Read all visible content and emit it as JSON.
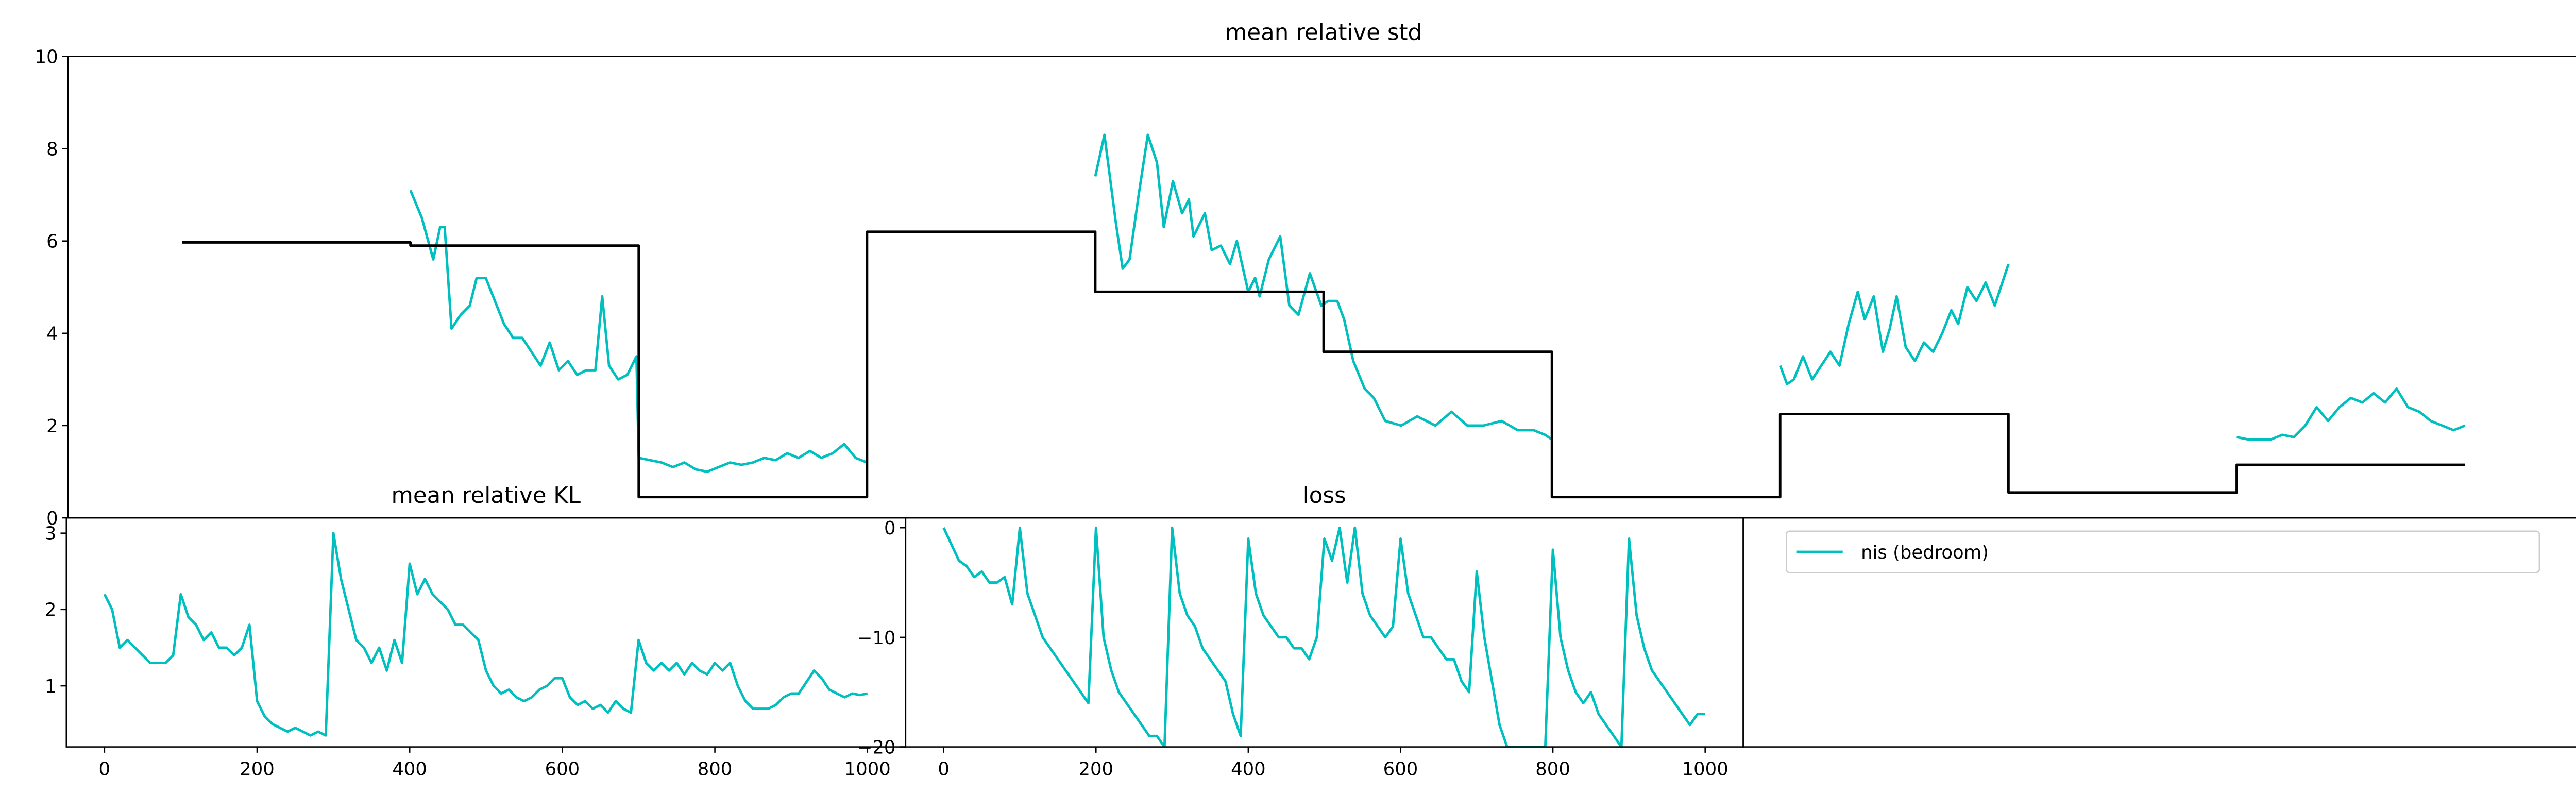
{
  "chart_data": [
    {
      "type": "line",
      "title": "mean relative std",
      "xlim": [
        50,
        1150
      ],
      "ylim": [
        0,
        10
      ],
      "yticks": [
        0,
        2,
        4,
        6,
        8,
        10
      ],
      "series": [
        {
          "color": "#00bfbf",
          "x": [
            200,
            205,
            210,
            213,
            215,
            218,
            222,
            226,
            229,
            233,
            237,
            241,
            245,
            249,
            253,
            257,
            261,
            265,
            269,
            273,
            277,
            281,
            284,
            287,
            291,
            295,
            299,
            300,
            305,
            310,
            315,
            320,
            325,
            330,
            335,
            340,
            345,
            350,
            355,
            360,
            365,
            370,
            375,
            380,
            385,
            390,
            395,
            400,
            450,
            500,
            504,
            509,
            512,
            515,
            519,
            523,
            527,
            530,
            534,
            538,
            541,
            543,
            548,
            551,
            555,
            559,
            562,
            567,
            570,
            572,
            576,
            581,
            585,
            589,
            594,
            599,
            602,
            606,
            609,
            613,
            618,
            622,
            627,
            634,
            641,
            649,
            656,
            663,
            670,
            678,
            685,
            692,
            697,
            700,
            750,
            800,
            803,
            806,
            810,
            814,
            818,
            822,
            826,
            830,
            834,
            837,
            841,
            845,
            848,
            851,
            855,
            859,
            863,
            867,
            871,
            875,
            878,
            882,
            886,
            890,
            894,
            900,
            950,
            1000,
            1005,
            1010,
            1015,
            1020,
            1025,
            1030,
            1035,
            1040,
            1045,
            1050,
            1055,
            1060,
            1065,
            1070,
            1075,
            1080,
            1085,
            1090,
            1095,
            1100
          ],
          "values": [
            7.1,
            6.5,
            5.6,
            6.3,
            6.3,
            4.1,
            4.4,
            4.6,
            5.2,
            5.2,
            4.7,
            4.2,
            3.9,
            3.9,
            3.6,
            3.3,
            3.8,
            3.2,
            3.4,
            3.1,
            3.2,
            3.2,
            4.8,
            3.3,
            3.0,
            3.1,
            3.5,
            1.3,
            1.25,
            1.2,
            1.1,
            1.2,
            1.05,
            1.0,
            1.1,
            1.2,
            1.15,
            1.2,
            1.3,
            1.25,
            1.4,
            1.3,
            1.45,
            1.3,
            1.4,
            1.6,
            1.3,
            1.2,
            null,
            7.4,
            8.3,
            6.4,
            5.4,
            5.6,
            7.0,
            8.3,
            7.7,
            6.3,
            7.3,
            6.6,
            6.9,
            6.1,
            6.6,
            5.8,
            5.9,
            5.5,
            6.0,
            4.9,
            5.2,
            4.8,
            5.6,
            6.1,
            4.6,
            4.4,
            5.3,
            4.6,
            4.7,
            4.7,
            4.3,
            3.4,
            2.8,
            2.6,
            2.1,
            2.0,
            2.2,
            2.0,
            2.3,
            2.0,
            2.0,
            2.1,
            1.9,
            1.9,
            1.8,
            1.7,
            null,
            3.3,
            2.9,
            3.0,
            3.5,
            3.0,
            3.3,
            3.6,
            3.3,
            4.2,
            4.9,
            4.3,
            4.8,
            3.6,
            4.1,
            4.8,
            3.7,
            3.4,
            3.8,
            3.6,
            4.0,
            4.5,
            4.2,
            5.0,
            4.7,
            5.1,
            4.6,
            5.5,
            null,
            1.75,
            1.7,
            1.7,
            1.7,
            1.8,
            1.75,
            2.0,
            2.4,
            2.1,
            2.4,
            2.6,
            2.5,
            2.7,
            2.5,
            2.8,
            2.4,
            2.3,
            2.1,
            2.0,
            1.9,
            2.0
          ]
        },
        {
          "color": "#000000",
          "x": [
            100,
            200,
            200,
            300,
            300,
            400,
            400,
            500,
            500,
            600,
            600,
            700,
            700,
            800,
            800,
            900,
            900,
            1000,
            1000,
            1100
          ],
          "values": [
            5.97,
            5.97,
            5.9,
            5.9,
            0.45,
            0.45,
            6.2,
            6.2,
            4.9,
            4.9,
            3.6,
            3.6,
            0.45,
            0.45,
            2.25,
            2.25,
            0.55,
            0.55,
            1.15,
            1.15
          ]
        }
      ]
    },
    {
      "type": "line",
      "title": "mean relative KL",
      "xlim": [
        -50,
        1050
      ],
      "ylim": [
        0.2,
        3.2
      ],
      "xticks": [
        0,
        200,
        400,
        600,
        800,
        1000
      ],
      "yticks": [
        1,
        2,
        3
      ],
      "color": "#00bfbf",
      "x": [
        0,
        10,
        20,
        30,
        40,
        50,
        60,
        70,
        80,
        90,
        100,
        110,
        120,
        130,
        140,
        150,
        160,
        170,
        180,
        190,
        200,
        210,
        220,
        230,
        240,
        250,
        260,
        270,
        280,
        290,
        300,
        310,
        320,
        330,
        340,
        350,
        360,
        370,
        380,
        390,
        400,
        410,
        420,
        430,
        440,
        450,
        460,
        470,
        480,
        490,
        500,
        510,
        520,
        530,
        540,
        550,
        560,
        570,
        580,
        590,
        600,
        610,
        620,
        630,
        640,
        650,
        660,
        670,
        680,
        690,
        700,
        710,
        720,
        730,
        740,
        750,
        760,
        770,
        780,
        790,
        800,
        810,
        820,
        830,
        840,
        850,
        860,
        870,
        880,
        890,
        900,
        910,
        920,
        930,
        940,
        950,
        960,
        970,
        980,
        990,
        1000
      ],
      "values": [
        2.2,
        2.0,
        1.5,
        1.6,
        1.5,
        1.4,
        1.3,
        1.3,
        1.3,
        1.4,
        2.2,
        1.9,
        1.8,
        1.6,
        1.7,
        1.5,
        1.5,
        1.4,
        1.5,
        1.8,
        0.8,
        0.6,
        0.5,
        0.45,
        0.4,
        0.45,
        0.4,
        0.35,
        0.4,
        0.35,
        3.0,
        2.4,
        2.0,
        1.6,
        1.5,
        1.3,
        1.5,
        1.2,
        1.6,
        1.3,
        2.6,
        2.2,
        2.4,
        2.2,
        2.1,
        2.0,
        1.8,
        1.8,
        1.7,
        1.6,
        1.2,
        1.0,
        0.9,
        0.95,
        0.85,
        0.8,
        0.85,
        0.95,
        1.0,
        1.1,
        1.1,
        0.85,
        0.75,
        0.8,
        0.7,
        0.75,
        0.65,
        0.8,
        0.7,
        0.65,
        1.6,
        1.3,
        1.2,
        1.3,
        1.2,
        1.3,
        1.15,
        1.3,
        1.2,
        1.15,
        1.3,
        1.2,
        1.3,
        1.0,
        0.8,
        0.7,
        0.7,
        0.7,
        0.75,
        0.85,
        0.9,
        0.9,
        1.05,
        1.2,
        1.1,
        0.95,
        0.9,
        0.85,
        0.9,
        0.88,
        0.9
      ]
    },
    {
      "type": "line",
      "title": "loss",
      "xlim": [
        -50,
        1050
      ],
      "ylim": [
        -20,
        0.9
      ],
      "xticks": [
        0,
        200,
        400,
        600,
        800,
        1000
      ],
      "yticks": [
        {
          "value": -20,
          "label": "−20"
        },
        {
          "value": -10,
          "label": "−10"
        },
        0
      ],
      "color": "#00bfbf",
      "x": [
        0,
        10,
        20,
        30,
        40,
        50,
        60,
        70,
        80,
        90,
        100,
        110,
        120,
        130,
        140,
        150,
        160,
        170,
        180,
        190,
        200,
        210,
        220,
        230,
        240,
        250,
        260,
        270,
        280,
        290,
        300,
        310,
        320,
        330,
        340,
        350,
        360,
        370,
        380,
        390,
        400,
        410,
        420,
        430,
        440,
        450,
        460,
        470,
        480,
        490,
        500,
        510,
        520,
        530,
        540,
        550,
        560,
        570,
        580,
        590,
        600,
        610,
        620,
        630,
        640,
        650,
        660,
        670,
        680,
        690,
        700,
        710,
        720,
        730,
        740,
        750,
        760,
        770,
        780,
        790,
        800,
        810,
        820,
        830,
        840,
        850,
        860,
        870,
        880,
        890,
        900,
        910,
        920,
        930,
        940,
        950,
        960,
        970,
        980,
        990,
        1000
      ],
      "values": [
        0,
        -1.5,
        -3,
        -3.5,
        -4.5,
        -4,
        -5,
        -5,
        -4.5,
        -7,
        0,
        -6,
        -8,
        -10,
        -11,
        -12,
        -13,
        -14,
        -15,
        -16,
        0,
        -10,
        -13,
        -15,
        -16,
        -17,
        -18,
        -19,
        -19,
        -20,
        0,
        -6,
        -8,
        -9,
        -11,
        -12,
        -13,
        -14,
        -17,
        -19,
        -1,
        -6,
        -8,
        -9,
        -10,
        -10,
        -11,
        -11,
        -12,
        -10,
        -1,
        -3,
        0,
        -5,
        0,
        -6,
        -8,
        -9,
        -10,
        -9,
        -1,
        -6,
        -8,
        -10,
        -10,
        -11,
        -12,
        -12,
        -14,
        -15,
        -4,
        -10,
        -14,
        -18,
        -20,
        -20,
        -20,
        -20,
        -20,
        -20,
        -2,
        -10,
        -13,
        -15,
        -16,
        -15,
        -17,
        -18,
        -19,
        -20,
        -1,
        -8,
        -11,
        -13,
        -14,
        -15,
        -16,
        -17,
        -18,
        -17,
        -17
      ]
    },
    {
      "type": "legend",
      "series": [
        {
          "name": "nis (bedroom)",
          "color": "#00bfbf"
        }
      ]
    }
  ]
}
